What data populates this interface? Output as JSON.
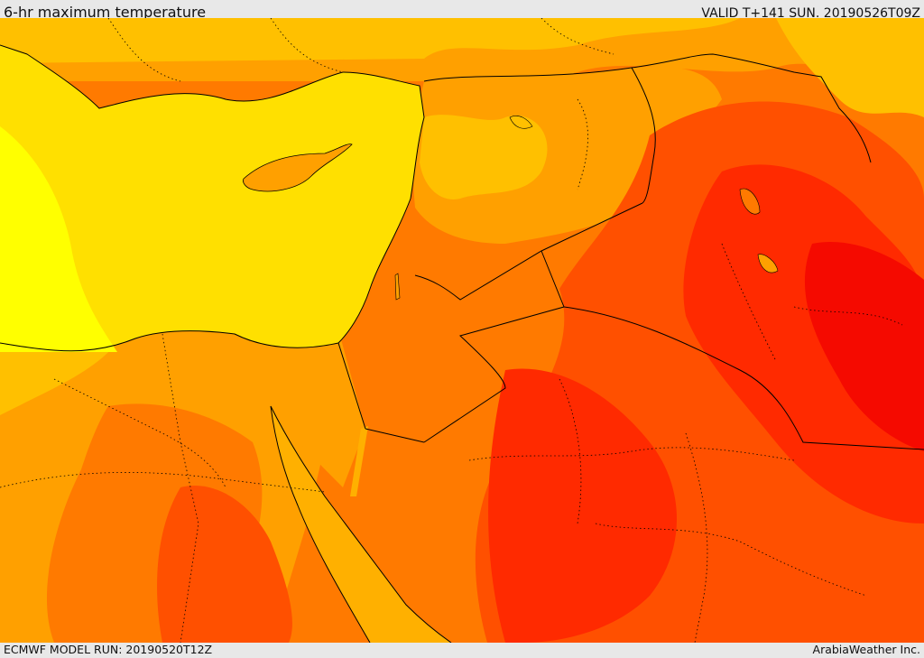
{
  "header": {
    "title": "6-hr maximum temperature",
    "valid_time": "VALID T+141 SUN. 20190526T09Z"
  },
  "footer": {
    "model_run": "ECMWF MODEL RUN: 20190520T12Z",
    "credit": "ArabiaWeather Inc."
  },
  "map": {
    "region": "Eastern Mediterranean / Levant / Northern Arabia",
    "field": "6-hr maximum temperature",
    "color_scale": [
      "#ffff00",
      "#ffe000",
      "#ffc000",
      "#ffa000",
      "#ff7a00",
      "#ff5000",
      "#ff2a00",
      "#f50a00"
    ],
    "sea_color": "#ffe000",
    "border_color": "#000000"
  }
}
